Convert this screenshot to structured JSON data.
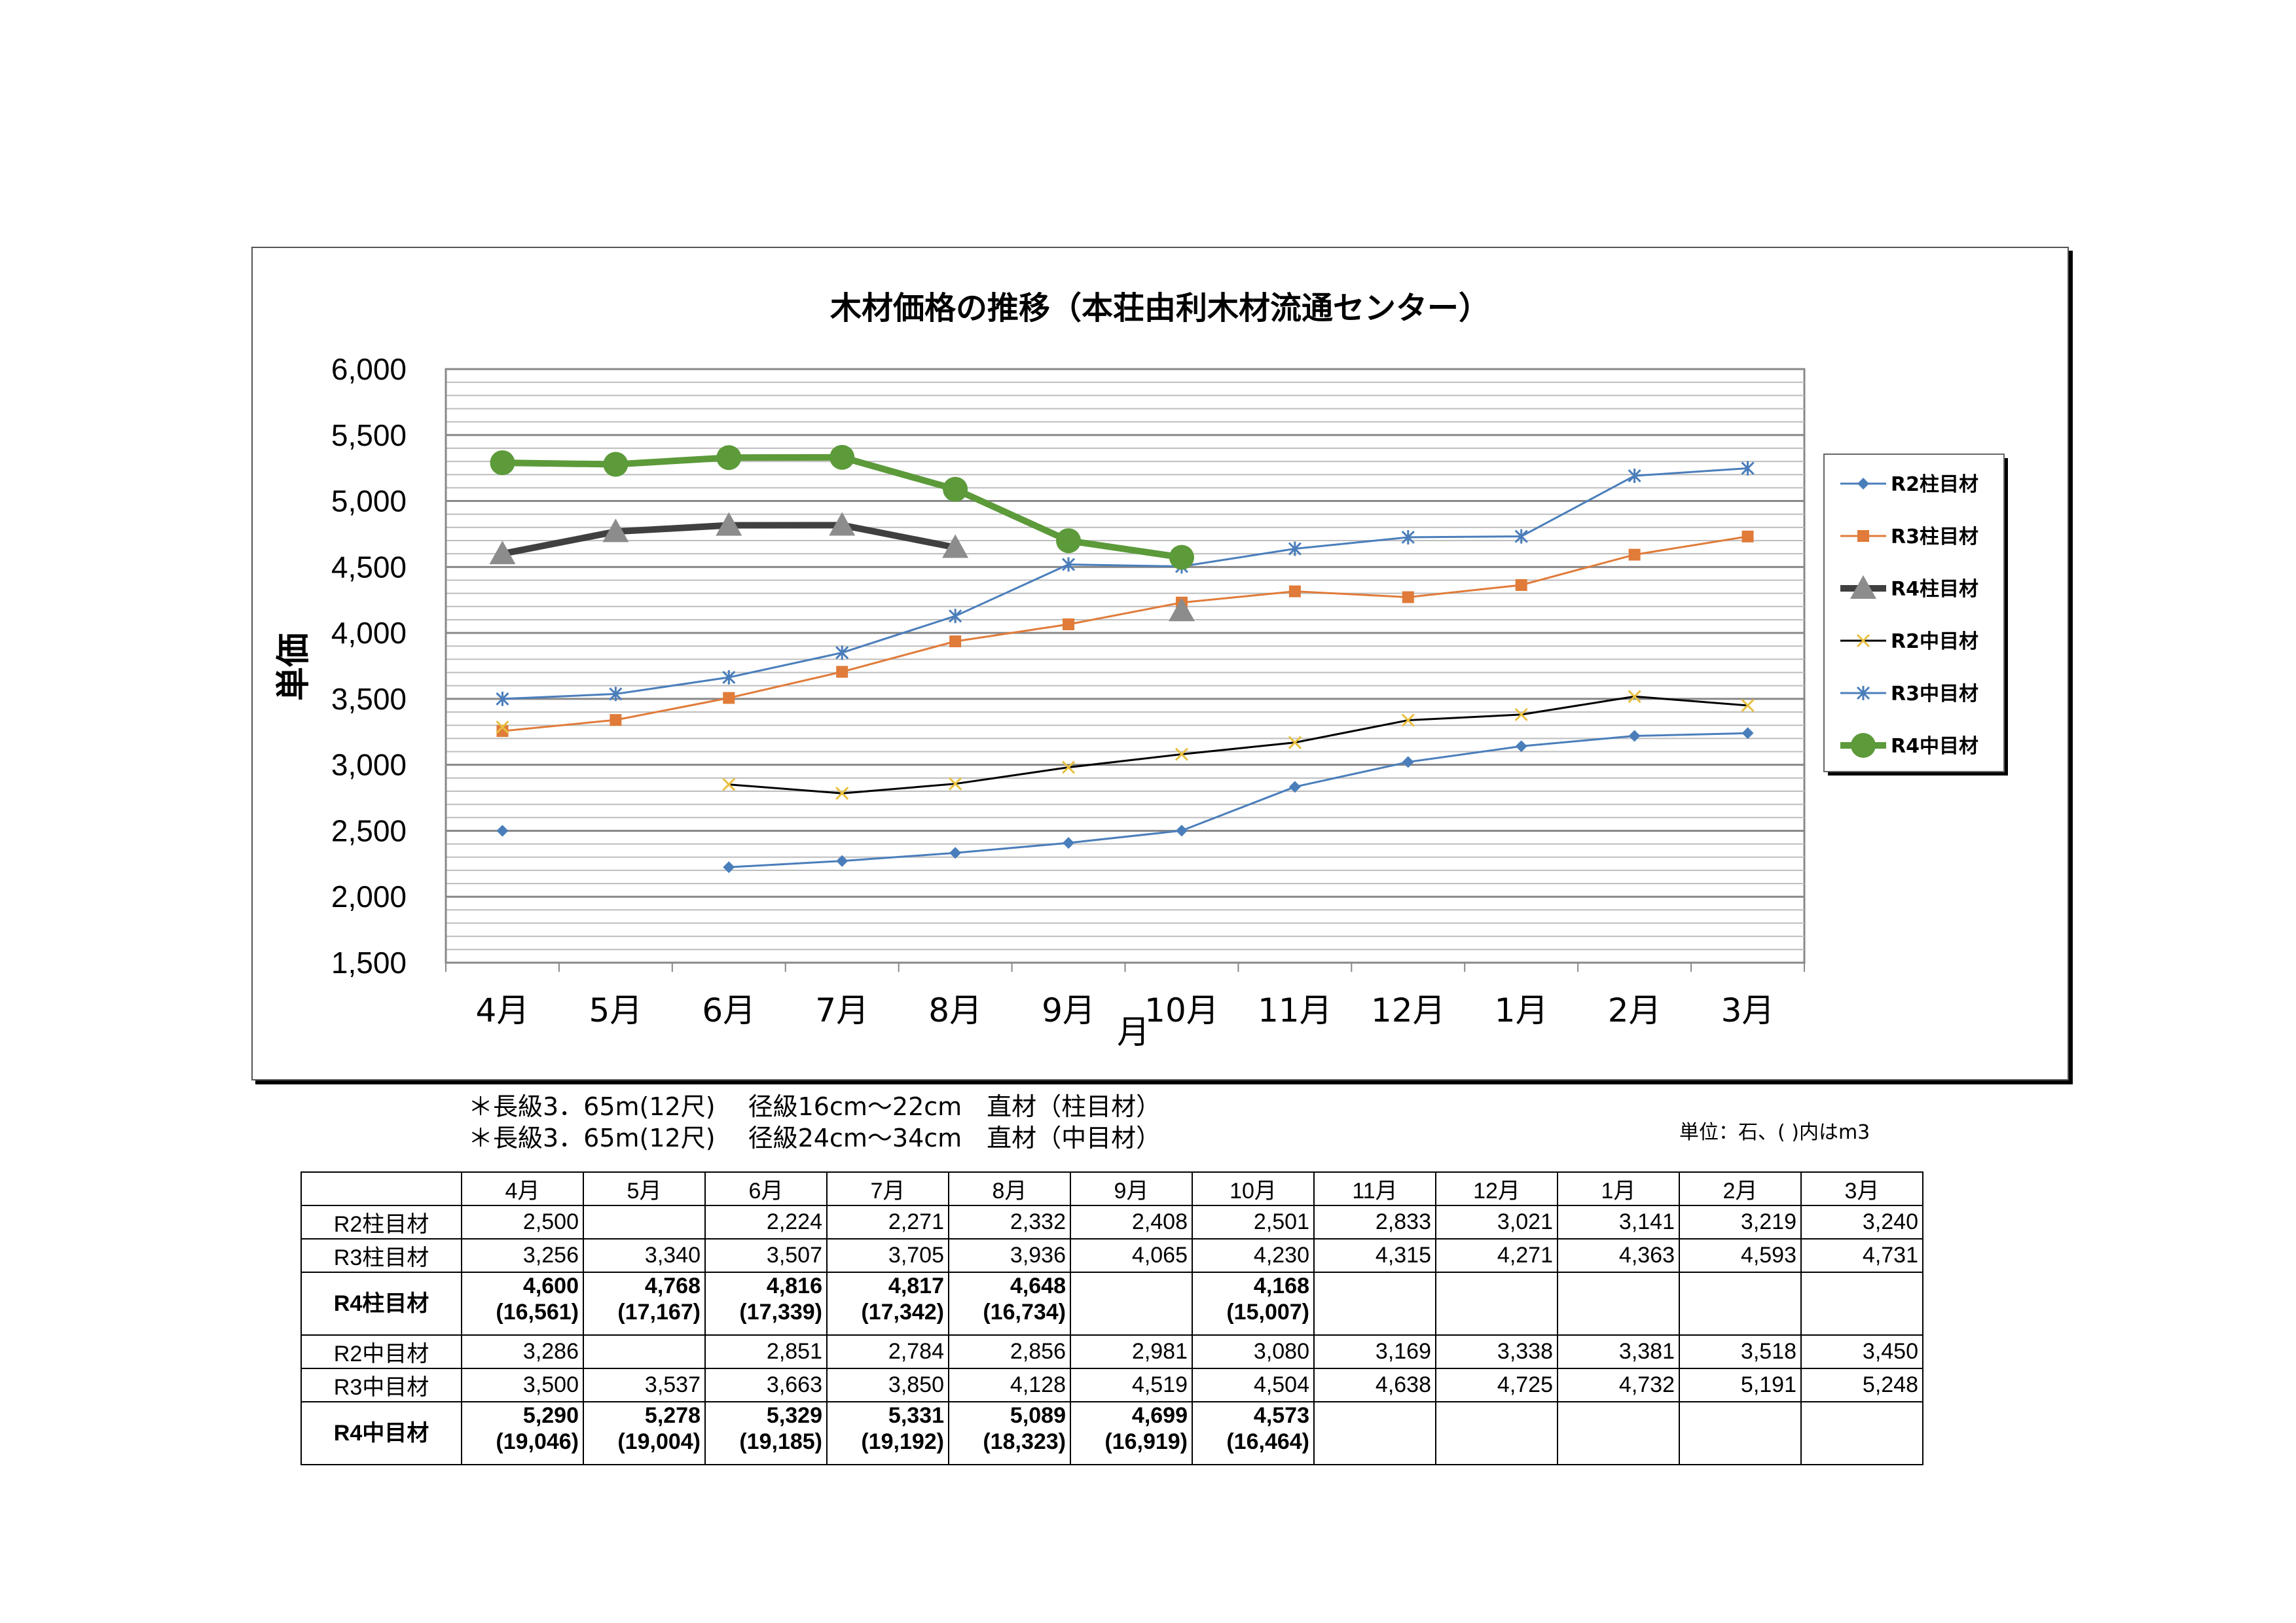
{
  "chart_data": {
    "type": "line",
    "title": "木材価格の推移（本荘由利木材流通センター）",
    "xlabel": "月",
    "ylabel": "単価",
    "ylim": [
      1500,
      6000
    ],
    "yticks": [
      "1,500",
      "2,000",
      "2,500",
      "3,000",
      "3,500",
      "4,000",
      "4,500",
      "5,000",
      "5,500",
      "6,000"
    ],
    "ytick_values": [
      1500,
      2000,
      2500,
      3000,
      3500,
      4000,
      4500,
      5000,
      5500,
      6000
    ],
    "categories": [
      "4月",
      "5月",
      "6月",
      "7月",
      "8月",
      "9月",
      "10月",
      "11月",
      "12月",
      "1月",
      "2月",
      "3月"
    ],
    "grid": true,
    "legend_position": "right",
    "series": [
      {
        "name": "R2柱目材",
        "color": "#4A7EBB",
        "marker": "diamond",
        "width": 3,
        "values": [
          2500,
          null,
          2224,
          2271,
          2332,
          2408,
          2501,
          2833,
          3021,
          3141,
          3219,
          3240
        ]
      },
      {
        "name": "R3柱目材",
        "color": "#E07B39",
        "marker": "square",
        "width": 3,
        "values": [
          3256,
          3340,
          3507,
          3705,
          3936,
          4065,
          4230,
          4315,
          4271,
          4363,
          4593,
          4731
        ]
      },
      {
        "name": "R4柱目材",
        "color": "#404040",
        "marker": "triangle",
        "marker_color": "#8C8C8C",
        "width": 10,
        "values": [
          4600,
          4768,
          4816,
          4817,
          4648,
          null,
          4168,
          null,
          null,
          null,
          null,
          null
        ]
      },
      {
        "name": "R2中目材",
        "color": "#000000",
        "marker": "xstar",
        "marker_color": "#E8C040",
        "width": 3,
        "values": [
          3286,
          null,
          2851,
          2784,
          2856,
          2981,
          3080,
          3169,
          3338,
          3381,
          3518,
          3450
        ]
      },
      {
        "name": "R3中目材",
        "color": "#4A7EBB",
        "marker": "star",
        "width": 3,
        "values": [
          3500,
          3537,
          3663,
          3850,
          4128,
          4519,
          4504,
          4638,
          4725,
          4732,
          5191,
          5248
        ]
      },
      {
        "name": "R4中目材",
        "color": "#5C9A3A",
        "marker": "circle",
        "width": 10,
        "values": [
          5290,
          5278,
          5329,
          5331,
          5089,
          4699,
          4573,
          null,
          null,
          null,
          null,
          null
        ]
      }
    ]
  },
  "notes": [
    "＊長級3．65m(12尺)　 径級16cm～22cm　直材（柱目材）",
    "＊長級3．65m(12尺)　 径級24cm～34cm　直材（中目材）"
  ],
  "unit_note": "単位：石、(  )内はm3",
  "table": {
    "months": [
      "4月",
      "5月",
      "6月",
      "7月",
      "8月",
      "9月",
      "10月",
      "11月",
      "12月",
      "1月",
      "2月",
      "3月"
    ],
    "rows": [
      {
        "label": "R2柱目材",
        "bold": false,
        "values": [
          "2,500",
          "",
          "2,224",
          "2,271",
          "2,332",
          "2,408",
          "2,501",
          "2,833",
          "3,021",
          "3,141",
          "3,219",
          "3,240"
        ],
        "sub": []
      },
      {
        "label": "R3柱目材",
        "bold": false,
        "values": [
          "3,256",
          "3,340",
          "3,507",
          "3,705",
          "3,936",
          "4,065",
          "4,230",
          "4,315",
          "4,271",
          "4,363",
          "4,593",
          "4,731"
        ],
        "sub": []
      },
      {
        "label": "R4柱目材",
        "bold": true,
        "values": [
          "4,600",
          "4,768",
          "4,816",
          "4,817",
          "4,648",
          "",
          "4,168",
          "",
          "",
          "",
          "",
          ""
        ],
        "sub": [
          "(16,561)",
          "(17,167)",
          "(17,339)",
          "(17,342)",
          "(16,734)",
          "",
          "(15,007)",
          "",
          "",
          "",
          "",
          ""
        ]
      },
      {
        "label": "R2中目材",
        "bold": false,
        "values": [
          "3,286",
          "",
          "2,851",
          "2,784",
          "2,856",
          "2,981",
          "3,080",
          "3,169",
          "3,338",
          "3,381",
          "3,518",
          "3,450"
        ],
        "sub": []
      },
      {
        "label": "R3中目材",
        "bold": false,
        "values": [
          "3,500",
          "3,537",
          "3,663",
          "3,850",
          "4,128",
          "4,519",
          "4,504",
          "4,638",
          "4,725",
          "4,732",
          "5,191",
          "5,248"
        ],
        "sub": []
      },
      {
        "label": "R4中目材",
        "bold": true,
        "values": [
          "5,290",
          "5,278",
          "5,329",
          "5,331",
          "5,089",
          "4,699",
          "4,573",
          "",
          "",
          "",
          "",
          ""
        ],
        "sub": [
          "(19,046)",
          "(19,004)",
          "(19,185)",
          "(19,192)",
          "(18,323)",
          "(16,919)",
          "(16,464)",
          "",
          "",
          "",
          "",
          ""
        ]
      }
    ]
  }
}
